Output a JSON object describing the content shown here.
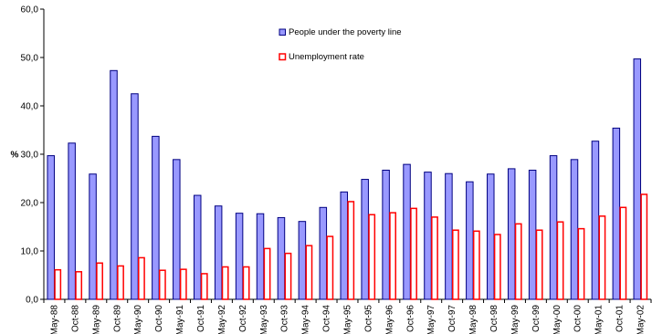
{
  "chart_data": {
    "type": "bar",
    "title": "",
    "xlabel": "",
    "ylabel": "%",
    "ylim": [
      0,
      60
    ],
    "yticks": [
      "0,0",
      "10,0",
      "20,0",
      "30,0",
      "40,0",
      "50,0",
      "60,0"
    ],
    "grid": false,
    "legend_position": "top-center",
    "categories": [
      "May-88",
      "Oct-88",
      "May-89",
      "Oct-89",
      "May-90",
      "Oct-90",
      "May-91",
      "Oct-91",
      "May-92",
      "Oct-92",
      "May-93",
      "Oct-93",
      "May-94",
      "Oct-94",
      "May-95",
      "Oct-95",
      "May-96",
      "Oct-96",
      "May-97",
      "Oct-97",
      "May-98",
      "Oct-98",
      "May-99",
      "Oct-99",
      "May-00",
      "Oct-00",
      "May-01",
      "Oct-01",
      "May-02"
    ],
    "series": [
      {
        "name": "People under the poverty line",
        "fill": "#9999ff",
        "stroke": "#000080",
        "values": [
          29.7,
          32.3,
          25.9,
          47.3,
          42.5,
          33.7,
          28.9,
          21.5,
          19.3,
          17.8,
          17.7,
          16.9,
          16.1,
          19.0,
          22.2,
          24.8,
          26.7,
          27.9,
          26.3,
          26.0,
          24.3,
          25.9,
          27.0,
          26.7,
          29.7,
          28.9,
          32.7,
          35.4,
          49.7
        ]
      },
      {
        "name": "Unemployment rate",
        "fill": "#ffffff",
        "stroke": "#ff0000",
        "values": [
          6.1,
          5.7,
          7.5,
          6.9,
          8.6,
          6.0,
          6.2,
          5.3,
          6.7,
          6.7,
          10.5,
          9.5,
          11.1,
          13.0,
          20.2,
          17.5,
          17.9,
          18.8,
          17.0,
          14.3,
          14.1,
          13.4,
          15.6,
          14.3,
          16.0,
          14.6,
          17.2,
          19.0,
          21.7
        ]
      }
    ]
  }
}
